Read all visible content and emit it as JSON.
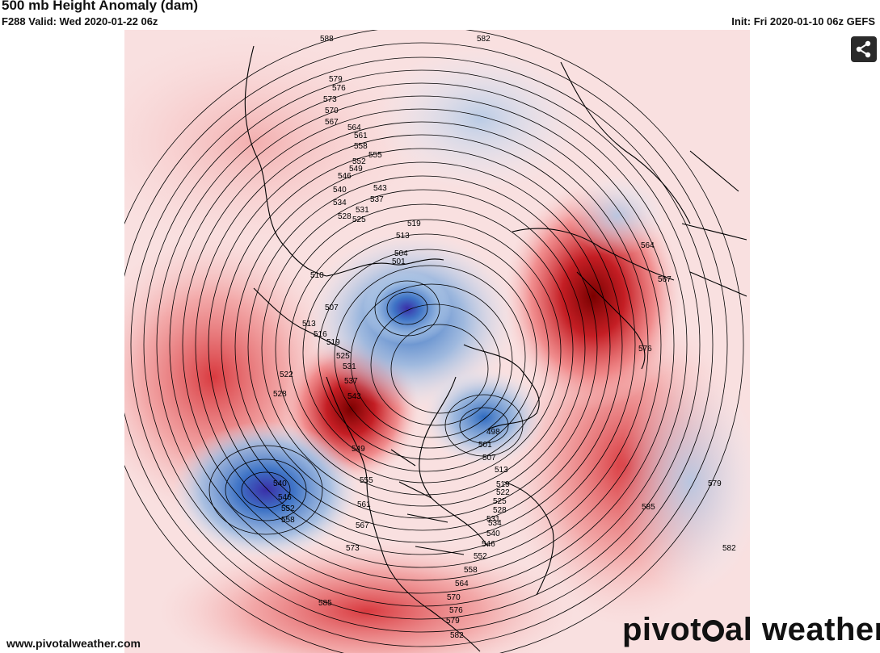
{
  "header": {
    "title": "500 mb Height Anomaly (dam)",
    "valid": "F288 Valid: Wed 2020-01-22 06z",
    "init": "Init: Fri 2020-01-10 06z GEFS"
  },
  "footer": {
    "url": "www.pivotalweather.com",
    "logo_left": "pivot",
    "logo_right": "al weather"
  },
  "share": {
    "icon": "share-icon"
  },
  "colors": {
    "strong_positive": "#8b0000",
    "positive": "#d7303a",
    "weak_positive": "#f4b3b3",
    "strong_negative": "#3b3fb0",
    "negative": "#3d6fbf",
    "weak_negative": "#b8cde6",
    "contour": "#000000"
  },
  "map": {
    "anomalies": [
      {
        "sign": "positive",
        "region": "Alaska / NW Canada"
      },
      {
        "sign": "positive",
        "region": "Western Europe / North Atlantic"
      },
      {
        "sign": "positive",
        "region": "Western Russia"
      },
      {
        "sign": "negative",
        "region": "Arctic / Siberia"
      },
      {
        "sign": "negative",
        "region": "Greenland / Canadian Arctic"
      },
      {
        "sign": "negative",
        "region": "North Pacific"
      },
      {
        "sign": "negative",
        "region": "Northeast Asia"
      }
    ],
    "contour_labels": [
      "588",
      "579",
      "576",
      "573",
      "570",
      "567",
      "564",
      "561",
      "558",
      "555",
      "552",
      "549",
      "546",
      "543",
      "540",
      "537",
      "534",
      "531",
      "528",
      "525",
      "519",
      "513",
      "510",
      "507",
      "504",
      "501",
      "498",
      "516",
      "522",
      "582",
      "585",
      "576",
      "567",
      "564",
      "579",
      "582",
      "540",
      "546",
      "552",
      "558",
      "561",
      "567",
      "573",
      "585",
      "549",
      "555",
      "543",
      "537",
      "531",
      "525",
      "519",
      "513",
      "507",
      "501",
      "498",
      "522",
      "528",
      "534",
      "540",
      "546",
      "552",
      "558",
      "564",
      "570",
      "576",
      "579",
      "582"
    ]
  }
}
